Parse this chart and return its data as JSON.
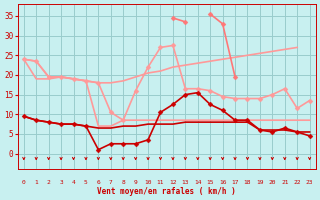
{
  "xlabel": "Vent moyen/en rafales ( km/h )",
  "bg_color": "#c8f0f0",
  "grid_color": "#99cccc",
  "x": [
    0,
    1,
    2,
    3,
    4,
    5,
    6,
    7,
    8,
    9,
    10,
    11,
    12,
    13,
    14,
    15,
    16,
    17,
    18,
    19,
    20,
    21,
    22,
    23
  ],
  "series": [
    {
      "y": [
        9.5,
        8.5,
        8.0,
        7.5,
        7.5,
        7.0,
        1.0,
        2.5,
        2.5,
        2.5,
        3.5,
        10.5,
        12.5,
        15.0,
        15.5,
        12.5,
        11.0,
        8.5,
        8.5,
        6.0,
        5.5,
        6.5,
        5.5,
        4.5
      ],
      "color": "#cc0000",
      "lw": 1.2,
      "marker": "D",
      "ms": 2.5,
      "zorder": 5
    },
    {
      "y": [
        9.5,
        8.5,
        8.0,
        7.5,
        7.5,
        7.0,
        6.5,
        6.5,
        7.0,
        7.0,
        7.5,
        7.5,
        7.5,
        8.0,
        8.0,
        8.0,
        8.0,
        8.0,
        8.0,
        6.0,
        6.0,
        6.0,
        5.5,
        5.5
      ],
      "color": "#cc0000",
      "lw": 1.2,
      "marker": null,
      "ms": 0,
      "zorder": 4
    },
    {
      "y": [
        24.0,
        23.5,
        19.5,
        19.5,
        19.0,
        18.5,
        18.0,
        10.5,
        8.5,
        16.0,
        22.0,
        27.0,
        27.5,
        16.5,
        16.5,
        16.0,
        14.5,
        14.0,
        14.0,
        14.0,
        15.0,
        16.5,
        11.5,
        13.5
      ],
      "color": "#ff9999",
      "lw": 1.2,
      "marker": "D",
      "ms": 2.5,
      "zorder": 3
    },
    {
      "y": [
        24.0,
        23.5,
        19.5,
        19.5,
        19.0,
        18.5,
        18.0,
        18.0,
        18.5,
        19.5,
        20.5,
        21.0,
        22.0,
        22.5,
        23.0,
        23.5,
        24.0,
        24.5,
        25.0,
        25.5,
        26.0,
        26.5,
        27.0,
        null
      ],
      "color": "#ff9999",
      "lw": 1.2,
      "marker": null,
      "ms": 0,
      "zorder": 2
    },
    {
      "y": [
        null,
        null,
        null,
        null,
        null,
        null,
        null,
        null,
        null,
        null,
        null,
        null,
        34.5,
        33.5,
        null,
        35.5,
        33.0,
        19.5,
        null,
        null,
        null,
        null,
        null,
        null
      ],
      "color": "#ff7777",
      "lw": 1.2,
      "marker": "D",
      "ms": 2.5,
      "zorder": 4
    },
    {
      "y": [
        24.0,
        19.0,
        19.0,
        19.5,
        19.0,
        18.5,
        7.0,
        7.0,
        8.5,
        8.5,
        8.5,
        8.5,
        8.5,
        8.5,
        8.5,
        8.5,
        8.5,
        8.5,
        8.5,
        8.5,
        8.5,
        8.5,
        8.5,
        8.5
      ],
      "color": "#ff9999",
      "lw": 1.2,
      "marker": null,
      "ms": 0,
      "zorder": 2
    }
  ],
  "ylim": [
    -4,
    38
  ],
  "yticks": [
    0,
    5,
    10,
    15,
    20,
    25,
    30,
    35
  ],
  "tick_color": "#cc0000",
  "arrow_color": "#cc0000"
}
